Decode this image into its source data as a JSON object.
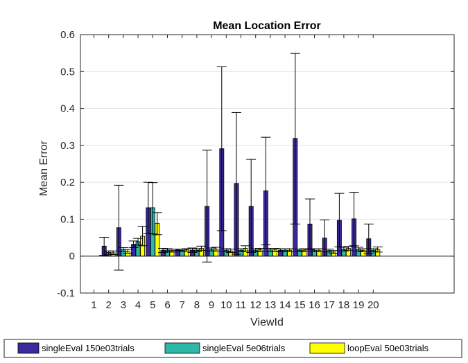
{
  "chart_data": {
    "type": "bar",
    "title": "Mean Location Error",
    "xlabel": "ViewId",
    "ylabel": "Mean Error",
    "ylim": [
      -0.1,
      0.6
    ],
    "yticks": [
      "-0.1",
      "0",
      "0.1",
      "0.2",
      "0.3",
      "0.4",
      "0.5",
      "0.6"
    ],
    "grid": "y",
    "legend_position": "bottom",
    "categories": [
      "1",
      "2",
      "3",
      "4",
      "5",
      "6",
      "7",
      "8",
      "9",
      "10",
      "11",
      "12",
      "13",
      "14",
      "15",
      "16",
      "17",
      "18",
      "19",
      "20"
    ],
    "series": [
      {
        "name": "singleEval 150e03trials",
        "color": "#3a2a9c",
        "values": [
          null,
          0.027,
          0.077,
          0.032,
          0.131,
          0.016,
          0.017,
          0.016,
          0.135,
          0.291,
          0.197,
          0.135,
          0.177,
          0.016,
          0.319,
          0.087,
          0.049,
          0.097,
          0.101,
          0.047
        ],
        "err_low": [
          null,
          0.002,
          -0.038,
          0.023,
          0.061,
          0.01,
          0.015,
          0.01,
          -0.016,
          0.069,
          0.005,
          0.01,
          0.031,
          0.012,
          0.087,
          0.018,
          0.0,
          0.025,
          0.028,
          0.007
        ],
        "err_high": [
          null,
          0.051,
          0.192,
          0.041,
          0.2,
          0.021,
          0.019,
          0.022,
          0.287,
          0.513,
          0.389,
          0.262,
          0.322,
          0.02,
          0.549,
          0.155,
          0.098,
          0.17,
          0.173,
          0.087
        ]
      },
      {
        "name": "singleEval 5e06trials",
        "color": "#2eb8a8",
        "values": [
          null,
          0.01,
          0.018,
          0.039,
          0.131,
          0.016,
          0.016,
          0.016,
          0.018,
          0.016,
          0.016,
          0.016,
          0.017,
          0.016,
          0.016,
          0.016,
          0.015,
          0.019,
          0.019,
          0.016
        ],
        "err_low": [
          null,
          0.005,
          0.013,
          0.03,
          0.06,
          0.012,
          0.013,
          0.012,
          0.014,
          0.012,
          0.012,
          0.012,
          0.013,
          0.012,
          0.013,
          0.012,
          0.011,
          0.014,
          0.014,
          0.012
        ],
        "err_high": [
          null,
          0.014,
          0.023,
          0.048,
          0.199,
          0.02,
          0.019,
          0.02,
          0.022,
          0.02,
          0.02,
          0.02,
          0.021,
          0.02,
          0.019,
          0.02,
          0.019,
          0.024,
          0.024,
          0.02
        ]
      },
      {
        "name": "loopEval 50e03trials",
        "color": "#ffff00",
        "values": [
          null,
          0.009,
          0.013,
          0.054,
          0.089,
          0.015,
          0.017,
          0.021,
          0.019,
          0.014,
          0.021,
          0.017,
          0.017,
          0.016,
          0.016,
          0.016,
          0.011,
          0.021,
          0.016,
          0.018
        ],
        "err_low": [
          null,
          0.004,
          0.008,
          0.028,
          0.058,
          0.011,
          0.014,
          0.015,
          0.014,
          0.01,
          0.014,
          0.013,
          0.013,
          0.012,
          0.012,
          0.012,
          0.007,
          0.016,
          0.012,
          0.011
        ],
        "err_high": [
          null,
          0.014,
          0.018,
          0.081,
          0.118,
          0.019,
          0.02,
          0.027,
          0.024,
          0.019,
          0.028,
          0.021,
          0.021,
          0.02,
          0.02,
          0.02,
          0.015,
          0.026,
          0.02,
          0.025
        ]
      }
    ]
  }
}
